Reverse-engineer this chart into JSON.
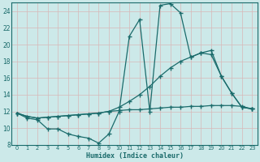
{
  "xlabel": "Humidex (Indice chaleur)",
  "bg_color": "#cce9e9",
  "grid_color": "#d4d4d4",
  "line_color": "#1a6b6b",
  "xlim": [
    -0.5,
    23.5
  ],
  "ylim": [
    8,
    25
  ],
  "yticks": [
    8,
    10,
    12,
    14,
    16,
    18,
    20,
    22,
    24
  ],
  "xticks": [
    0,
    1,
    2,
    3,
    4,
    5,
    6,
    7,
    8,
    9,
    10,
    11,
    12,
    13,
    14,
    15,
    16,
    17,
    18,
    19,
    20,
    21,
    22,
    23
  ],
  "line1_x": [
    0,
    1,
    2,
    3,
    4,
    5,
    6,
    7,
    8,
    9,
    10,
    11,
    12,
    13,
    14,
    15,
    16,
    17,
    18,
    19,
    20,
    21,
    22,
    23
  ],
  "line1_y": [
    11.8,
    11.2,
    11.0,
    9.9,
    9.9,
    9.3,
    9.0,
    8.8,
    8.2,
    9.3,
    12.0,
    21.0,
    23.0,
    12.0,
    24.7,
    24.9,
    23.8,
    18.5,
    19.0,
    18.8,
    16.2,
    14.2,
    12.5,
    12.3
  ],
  "line2_x": [
    0,
    1,
    2,
    3,
    4,
    5,
    6,
    7,
    8,
    9,
    10,
    11,
    12,
    13,
    14,
    15,
    16,
    17,
    18,
    19,
    20,
    21,
    22,
    23
  ],
  "line2_y": [
    11.8,
    11.4,
    11.2,
    11.3,
    11.4,
    11.5,
    11.6,
    11.7,
    11.8,
    12.0,
    12.5,
    13.2,
    14.0,
    15.0,
    16.2,
    17.2,
    18.0,
    18.5,
    19.0,
    19.3,
    16.2,
    14.2,
    12.5,
    12.3
  ],
  "line3_x": [
    0,
    1,
    2,
    3,
    4,
    5,
    6,
    7,
    8,
    9,
    10,
    11,
    12,
    13,
    14,
    15,
    16,
    17,
    18,
    19,
    20,
    21,
    22,
    23
  ],
  "line3_y": [
    11.8,
    11.4,
    11.2,
    11.3,
    11.4,
    11.5,
    11.6,
    11.7,
    11.8,
    12.0,
    12.1,
    12.2,
    12.2,
    12.3,
    12.4,
    12.5,
    12.5,
    12.6,
    12.6,
    12.7,
    12.7,
    12.7,
    12.6,
    12.3
  ]
}
